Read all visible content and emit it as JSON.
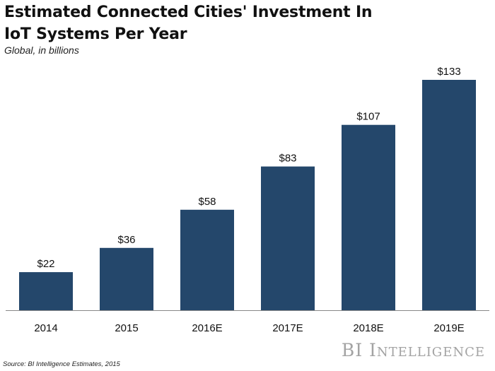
{
  "title": "Estimated Connected Cities' Investment In IoT Systems Per Year",
  "subtitle": "Global, in billions",
  "source": "Source: BI Intelligence Estimates, 2015",
  "brand": "BI Intelligence",
  "colors": {
    "bar": "#24476b",
    "axis": "#888888",
    "text": "#111111",
    "brand": "#a3a3a3"
  },
  "chart_data": {
    "type": "bar",
    "title": "Estimated Connected Cities' Investment In IoT Systems Per Year",
    "subtitle": "Global, in billions",
    "categories": [
      "2014",
      "2015",
      "2016E",
      "2017E",
      "2018E",
      "2019E"
    ],
    "values": [
      22,
      36,
      58,
      83,
      107,
      133
    ],
    "value_labels": [
      "$22",
      "$36",
      "$58",
      "$83",
      "$107",
      "$133"
    ],
    "xlabel": "",
    "ylabel": "",
    "ylim": [
      0,
      133
    ],
    "grid": false,
    "legend": "none"
  }
}
